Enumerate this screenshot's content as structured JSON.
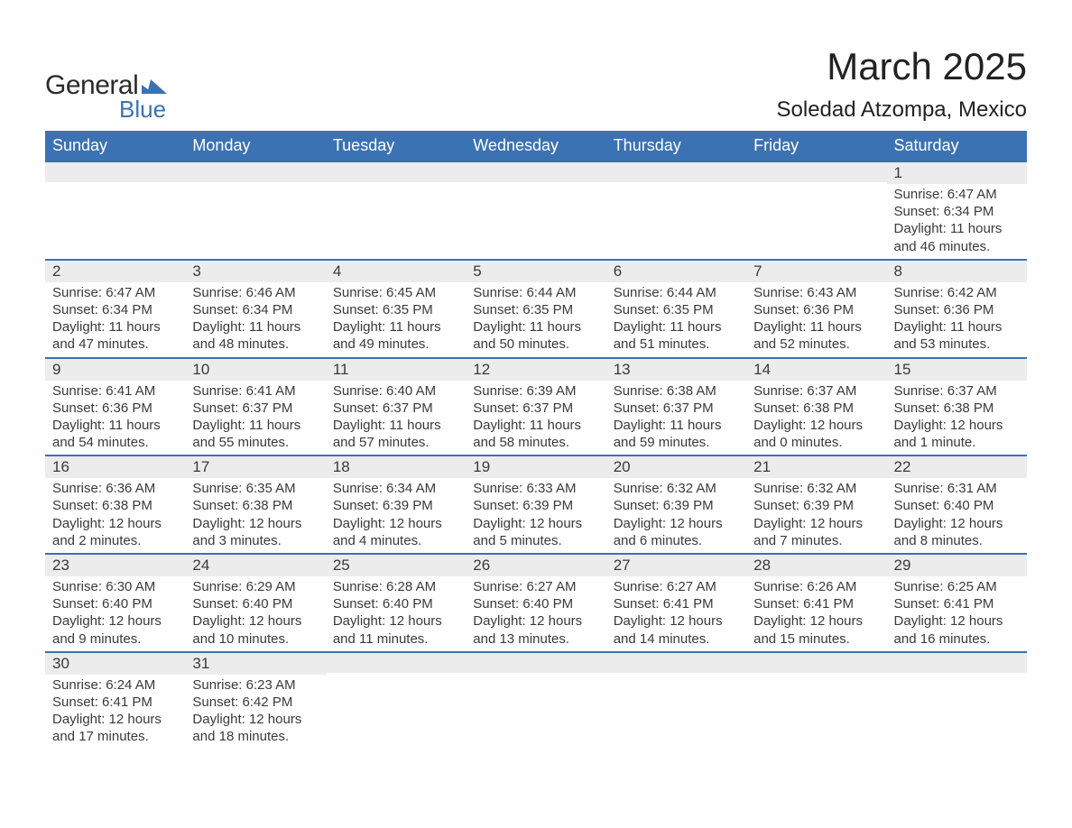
{
  "brand": {
    "general": "General",
    "blue": "Blue",
    "flag_color": "#3b72b3"
  },
  "header": {
    "month_title": "March 2025",
    "location": "Soledad Atzompa, Mexico"
  },
  "calendar": {
    "columns": [
      "Sunday",
      "Monday",
      "Tuesday",
      "Wednesday",
      "Thursday",
      "Friday",
      "Saturday"
    ],
    "header_bg": "#3b72b3",
    "header_fg": "#ffffff",
    "row_divider_color": "#3b72b3",
    "daynum_bg": "#ececec",
    "text_color": "#3a3a3a",
    "font_size_body": 15,
    "font_size_daynum": 17,
    "font_size_header": 18,
    "weeks": [
      [
        null,
        null,
        null,
        null,
        null,
        null,
        {
          "n": "1",
          "sunrise": "Sunrise: 6:47 AM",
          "sunset": "Sunset: 6:34 PM",
          "daylight": "Daylight: 11 hours and 46 minutes."
        }
      ],
      [
        {
          "n": "2",
          "sunrise": "Sunrise: 6:47 AM",
          "sunset": "Sunset: 6:34 PM",
          "daylight": "Daylight: 11 hours and 47 minutes."
        },
        {
          "n": "3",
          "sunrise": "Sunrise: 6:46 AM",
          "sunset": "Sunset: 6:34 PM",
          "daylight": "Daylight: 11 hours and 48 minutes."
        },
        {
          "n": "4",
          "sunrise": "Sunrise: 6:45 AM",
          "sunset": "Sunset: 6:35 PM",
          "daylight": "Daylight: 11 hours and 49 minutes."
        },
        {
          "n": "5",
          "sunrise": "Sunrise: 6:44 AM",
          "sunset": "Sunset: 6:35 PM",
          "daylight": "Daylight: 11 hours and 50 minutes."
        },
        {
          "n": "6",
          "sunrise": "Sunrise: 6:44 AM",
          "sunset": "Sunset: 6:35 PM",
          "daylight": "Daylight: 11 hours and 51 minutes."
        },
        {
          "n": "7",
          "sunrise": "Sunrise: 6:43 AM",
          "sunset": "Sunset: 6:36 PM",
          "daylight": "Daylight: 11 hours and 52 minutes."
        },
        {
          "n": "8",
          "sunrise": "Sunrise: 6:42 AM",
          "sunset": "Sunset: 6:36 PM",
          "daylight": "Daylight: 11 hours and 53 minutes."
        }
      ],
      [
        {
          "n": "9",
          "sunrise": "Sunrise: 6:41 AM",
          "sunset": "Sunset: 6:36 PM",
          "daylight": "Daylight: 11 hours and 54 minutes."
        },
        {
          "n": "10",
          "sunrise": "Sunrise: 6:41 AM",
          "sunset": "Sunset: 6:37 PM",
          "daylight": "Daylight: 11 hours and 55 minutes."
        },
        {
          "n": "11",
          "sunrise": "Sunrise: 6:40 AM",
          "sunset": "Sunset: 6:37 PM",
          "daylight": "Daylight: 11 hours and 57 minutes."
        },
        {
          "n": "12",
          "sunrise": "Sunrise: 6:39 AM",
          "sunset": "Sunset: 6:37 PM",
          "daylight": "Daylight: 11 hours and 58 minutes."
        },
        {
          "n": "13",
          "sunrise": "Sunrise: 6:38 AM",
          "sunset": "Sunset: 6:37 PM",
          "daylight": "Daylight: 11 hours and 59 minutes."
        },
        {
          "n": "14",
          "sunrise": "Sunrise: 6:37 AM",
          "sunset": "Sunset: 6:38 PM",
          "daylight": "Daylight: 12 hours and 0 minutes."
        },
        {
          "n": "15",
          "sunrise": "Sunrise: 6:37 AM",
          "sunset": "Sunset: 6:38 PM",
          "daylight": "Daylight: 12 hours and 1 minute."
        }
      ],
      [
        {
          "n": "16",
          "sunrise": "Sunrise: 6:36 AM",
          "sunset": "Sunset: 6:38 PM",
          "daylight": "Daylight: 12 hours and 2 minutes."
        },
        {
          "n": "17",
          "sunrise": "Sunrise: 6:35 AM",
          "sunset": "Sunset: 6:38 PM",
          "daylight": "Daylight: 12 hours and 3 minutes."
        },
        {
          "n": "18",
          "sunrise": "Sunrise: 6:34 AM",
          "sunset": "Sunset: 6:39 PM",
          "daylight": "Daylight: 12 hours and 4 minutes."
        },
        {
          "n": "19",
          "sunrise": "Sunrise: 6:33 AM",
          "sunset": "Sunset: 6:39 PM",
          "daylight": "Daylight: 12 hours and 5 minutes."
        },
        {
          "n": "20",
          "sunrise": "Sunrise: 6:32 AM",
          "sunset": "Sunset: 6:39 PM",
          "daylight": "Daylight: 12 hours and 6 minutes."
        },
        {
          "n": "21",
          "sunrise": "Sunrise: 6:32 AM",
          "sunset": "Sunset: 6:39 PM",
          "daylight": "Daylight: 12 hours and 7 minutes."
        },
        {
          "n": "22",
          "sunrise": "Sunrise: 6:31 AM",
          "sunset": "Sunset: 6:40 PM",
          "daylight": "Daylight: 12 hours and 8 minutes."
        }
      ],
      [
        {
          "n": "23",
          "sunrise": "Sunrise: 6:30 AM",
          "sunset": "Sunset: 6:40 PM",
          "daylight": "Daylight: 12 hours and 9 minutes."
        },
        {
          "n": "24",
          "sunrise": "Sunrise: 6:29 AM",
          "sunset": "Sunset: 6:40 PM",
          "daylight": "Daylight: 12 hours and 10 minutes."
        },
        {
          "n": "25",
          "sunrise": "Sunrise: 6:28 AM",
          "sunset": "Sunset: 6:40 PM",
          "daylight": "Daylight: 12 hours and 11 minutes."
        },
        {
          "n": "26",
          "sunrise": "Sunrise: 6:27 AM",
          "sunset": "Sunset: 6:40 PM",
          "daylight": "Daylight: 12 hours and 13 minutes."
        },
        {
          "n": "27",
          "sunrise": "Sunrise: 6:27 AM",
          "sunset": "Sunset: 6:41 PM",
          "daylight": "Daylight: 12 hours and 14 minutes."
        },
        {
          "n": "28",
          "sunrise": "Sunrise: 6:26 AM",
          "sunset": "Sunset: 6:41 PM",
          "daylight": "Daylight: 12 hours and 15 minutes."
        },
        {
          "n": "29",
          "sunrise": "Sunrise: 6:25 AM",
          "sunset": "Sunset: 6:41 PM",
          "daylight": "Daylight: 12 hours and 16 minutes."
        }
      ],
      [
        {
          "n": "30",
          "sunrise": "Sunrise: 6:24 AM",
          "sunset": "Sunset: 6:41 PM",
          "daylight": "Daylight: 12 hours and 17 minutes."
        },
        {
          "n": "31",
          "sunrise": "Sunrise: 6:23 AM",
          "sunset": "Sunset: 6:42 PM",
          "daylight": "Daylight: 12 hours and 18 minutes."
        },
        null,
        null,
        null,
        null,
        null
      ]
    ]
  }
}
